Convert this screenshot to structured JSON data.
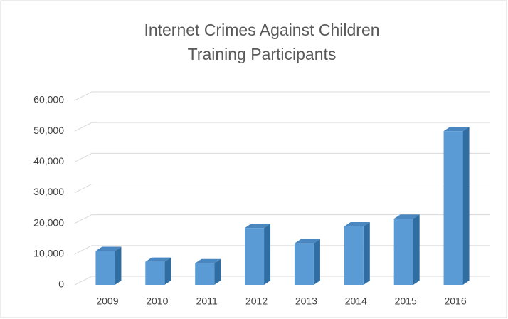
{
  "chart_data": {
    "type": "bar",
    "title": [
      "Internet Crimes Against Children",
      "Training Participants"
    ],
    "categories": [
      "2009",
      "2010",
      "2011",
      "2012",
      "2013",
      "2014",
      "2015",
      "2016"
    ],
    "values": [
      11000,
      7500,
      7000,
      18500,
      13500,
      19000,
      21500,
      50000
    ],
    "color": "#5b9bd5",
    "ylim": [
      0,
      60000
    ],
    "yticks": [
      0,
      {
        "value": 10000,
        "label": "10,000"
      },
      {
        "value": 20000,
        "label": "20,000"
      },
      {
        "value": 30000,
        "label": "30,000"
      },
      {
        "value": 40000,
        "label": "40,000"
      },
      {
        "value": 50000,
        "label": "50,000"
      },
      {
        "value": 60000,
        "label": "60,000"
      }
    ],
    "grid": true
  }
}
